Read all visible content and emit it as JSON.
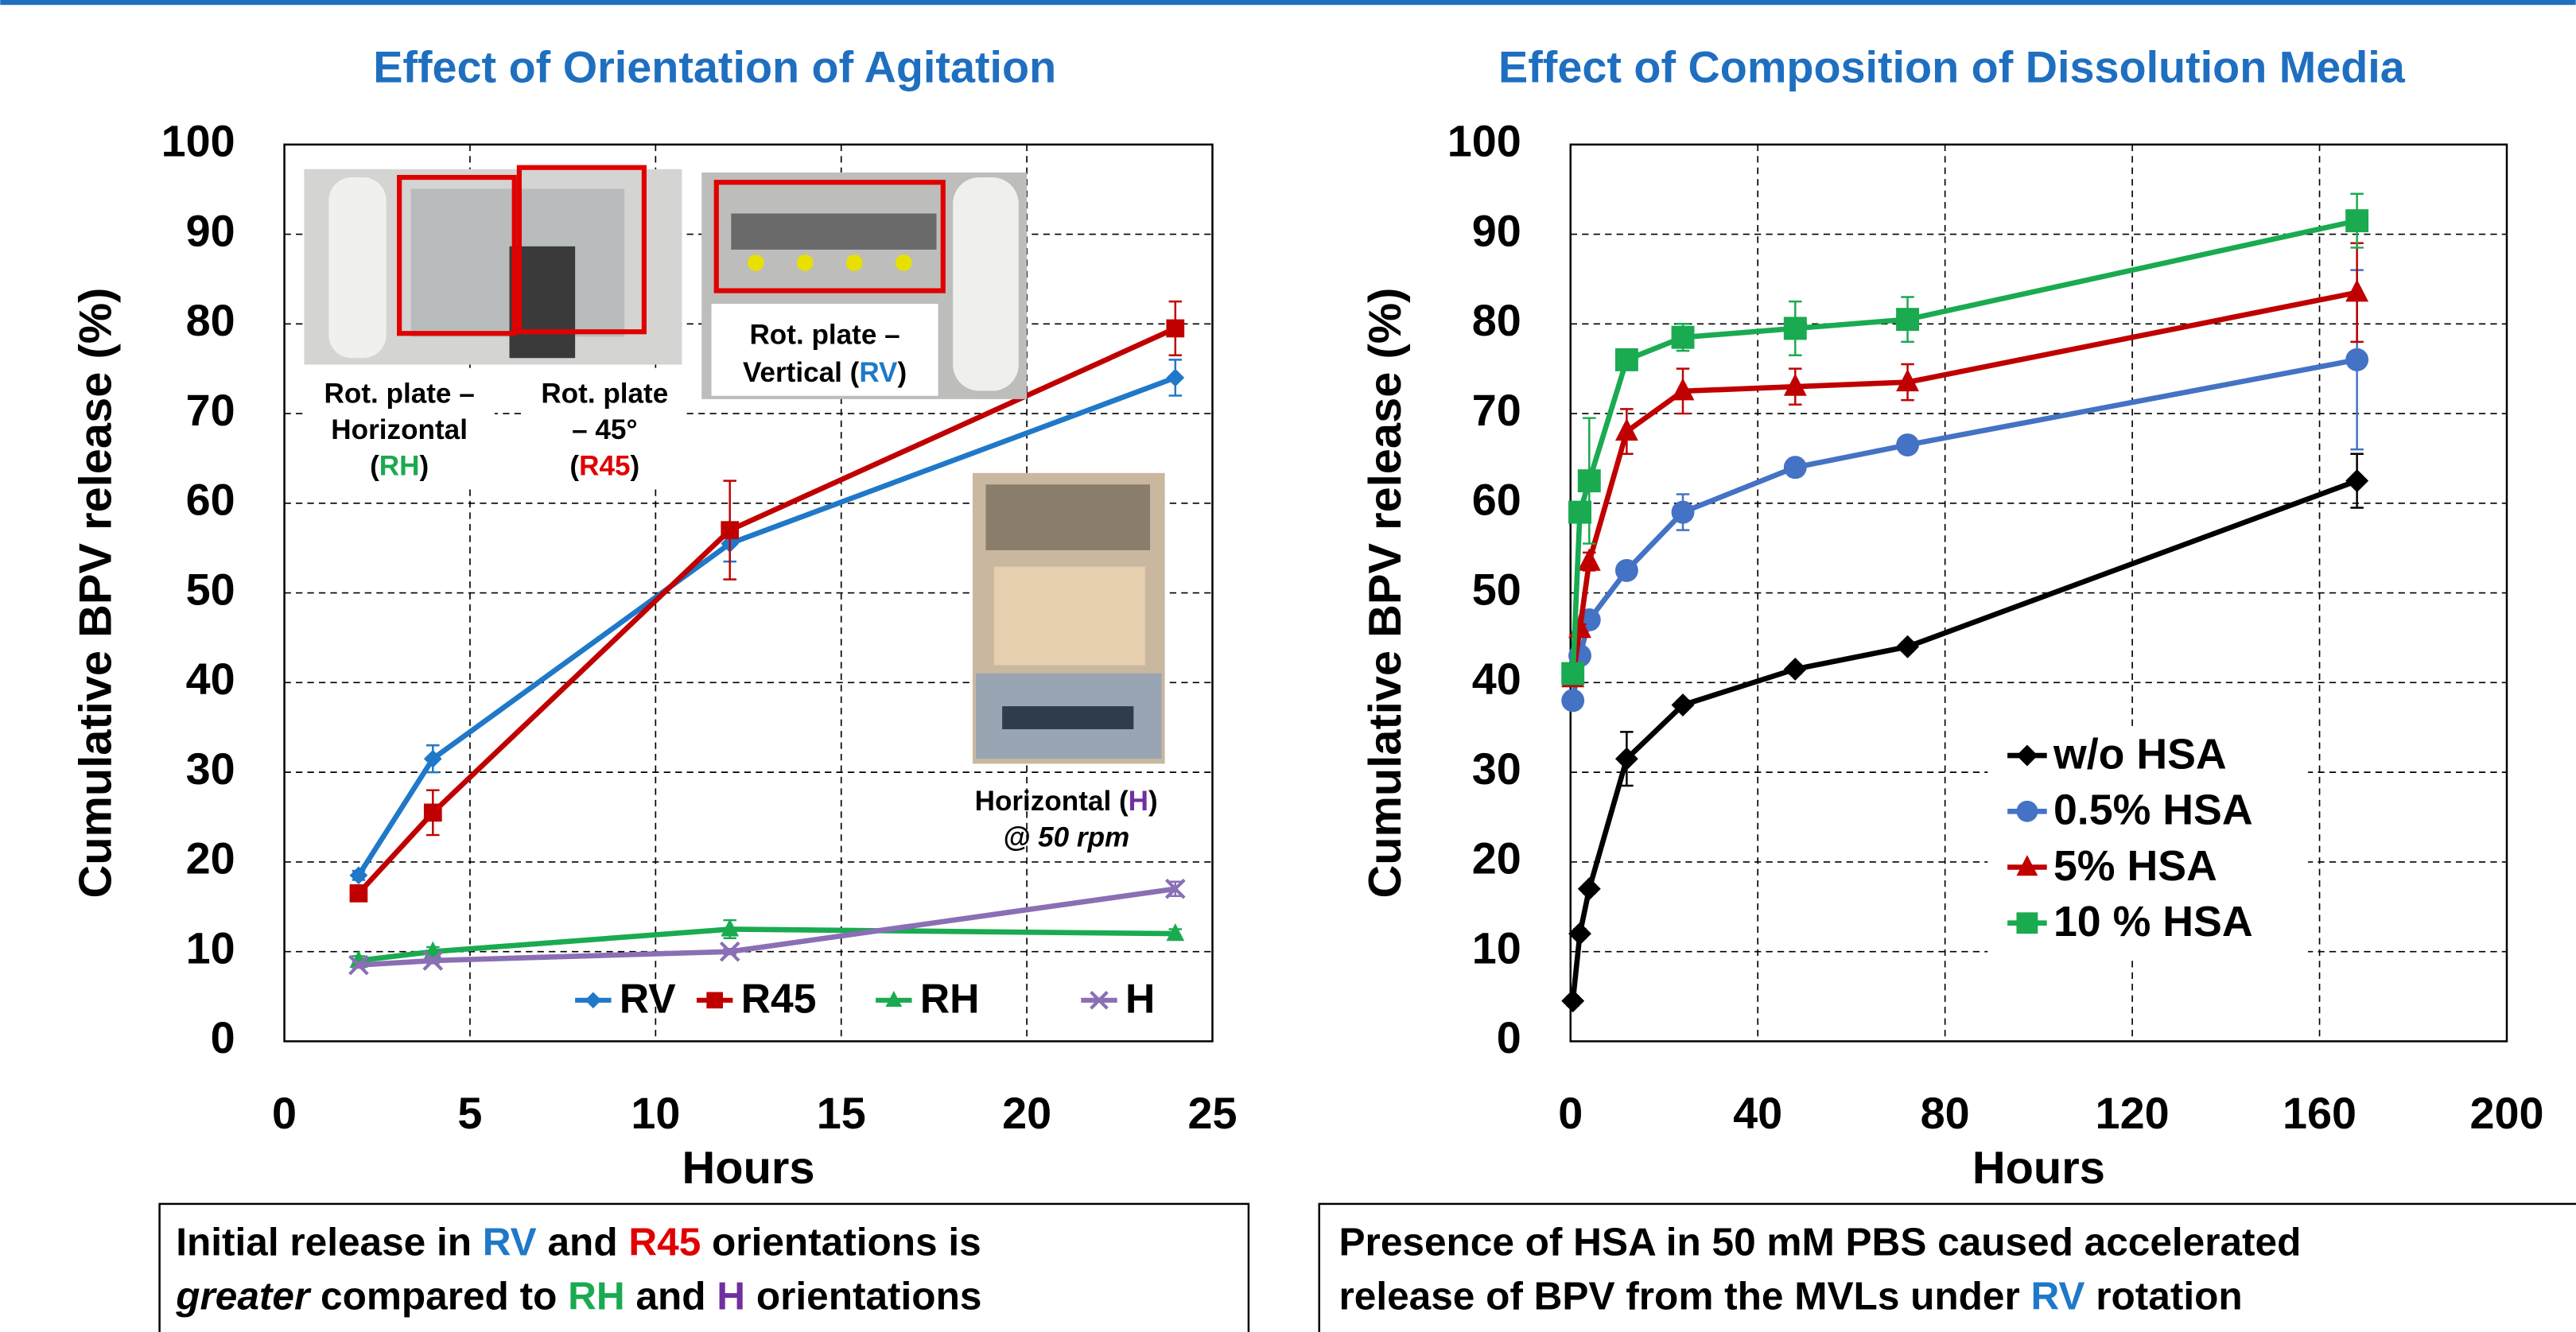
{
  "chart_data": [
    {
      "type": "line",
      "title": "Effect of Orientation of Agitation",
      "title_color": "#1f6fc0",
      "x_label": "Hours",
      "y_label": "Cumulative BPV release (%)",
      "x": [
        2,
        4,
        12,
        24
      ],
      "xlim": [
        0,
        25
      ],
      "xticks": [
        0,
        5,
        10,
        15,
        20,
        25
      ],
      "ylim": [
        0,
        100
      ],
      "yticks": [
        0,
        10,
        20,
        30,
        40,
        50,
        60,
        70,
        80,
        90,
        100
      ],
      "grid": true,
      "legend": "lower right",
      "series": [
        {
          "name": "RV",
          "color": "#1f78c8",
          "marker": "diamond",
          "values": [
            18.5,
            31.5,
            55.5,
            74
          ],
          "errors": [
            0.5,
            1.5,
            2,
            2
          ]
        },
        {
          "name": "R45",
          "color": "#c00000",
          "marker": "square",
          "values": [
            16.5,
            25.5,
            57,
            79.5
          ],
          "errors": [
            0.5,
            2.5,
            5.5,
            3
          ]
        },
        {
          "name": "RH",
          "color": "#1aaa50",
          "marker": "triangle",
          "values": [
            9,
            10,
            12.5,
            12
          ],
          "errors": [
            0.5,
            0.5,
            1,
            0.5
          ]
        },
        {
          "name": "H",
          "color": "#8a6fb5",
          "marker": "x",
          "values": [
            8.5,
            9,
            10,
            17
          ],
          "errors": [
            0.3,
            0.3,
            0.3,
            0.8
          ]
        }
      ],
      "annotations": [
        {
          "lines": [
            [
              {
                "text": "Rot. plate –"
              }
            ],
            [
              {
                "text": "Horizontal"
              }
            ],
            [
              {
                "text": "("
              },
              {
                "text": "RH",
                "color": "#1aaa50"
              },
              {
                "text": ")"
              }
            ]
          ]
        },
        {
          "lines": [
            [
              {
                "text": "Rot. plate"
              }
            ],
            [
              {
                "text": "– 45°"
              }
            ],
            [
              {
                "text": "("
              },
              {
                "text": "R45",
                "color": "#e00000"
              },
              {
                "text": ")"
              }
            ]
          ]
        },
        {
          "lines": [
            [
              {
                "text": "Rot. plate –"
              }
            ],
            [
              {
                "text": "Vertical ("
              },
              {
                "text": "RV",
                "color": "#1f78c8"
              },
              {
                "text": ")"
              }
            ]
          ]
        },
        {
          "lines": [
            [
              {
                "text": "Horizontal ("
              },
              {
                "text": "H",
                "color": "#7030a0"
              },
              {
                "text": ")"
              }
            ],
            [
              {
                "text": "@ 50 rpm",
                "style": "italic"
              }
            ]
          ]
        }
      ]
    },
    {
      "type": "line",
      "title": "Effect of Composition of Dissolution Media",
      "title_color": "#1f6fc0",
      "x_label": "Hours",
      "y_label": "Cumulative BPV release (%)",
      "x": [
        0.5,
        2,
        4,
        12,
        24,
        48,
        72,
        168
      ],
      "xlim": [
        0,
        200
      ],
      "xticks": [
        0,
        40,
        80,
        120,
        160,
        200
      ],
      "ylim": [
        0,
        100
      ],
      "yticks": [
        0,
        10,
        20,
        30,
        40,
        50,
        60,
        70,
        80,
        90,
        100
      ],
      "grid": true,
      "legend": "center right",
      "series": [
        {
          "name": "w/o HSA",
          "color": "#000000",
          "marker": "diamond",
          "values": [
            4.5,
            12,
            17,
            31.5,
            37.5,
            41.5,
            44,
            62.5
          ],
          "errors": [
            0.5,
            0.5,
            0.5,
            3,
            0.5,
            0.5,
            0.5,
            3
          ]
        },
        {
          "name": "0.5% HSA",
          "color": "#4472c4",
          "marker": "circle",
          "values": [
            38,
            43,
            47,
            52.5,
            59,
            64,
            66.5,
            76
          ],
          "errors": [
            0.5,
            0.5,
            1,
            0.5,
            2,
            1,
            0.5,
            10
          ]
        },
        {
          "name": "5% HSA",
          "color": "#c00000",
          "marker": "triangle",
          "values": [
            40.5,
            46,
            53.5,
            68,
            72.5,
            73,
            73.5,
            83.5
          ],
          "errors": [
            0.5,
            0.5,
            1,
            2.5,
            2.5,
            2,
            2,
            5.5
          ]
        },
        {
          "name": "10 % HSA",
          "color": "#1aaa50",
          "marker": "square",
          "values": [
            41,
            59,
            62.5,
            76,
            78.5,
            79.5,
            80.5,
            91.5
          ],
          "errors": [
            1,
            1,
            7,
            1,
            1.5,
            3,
            2.5,
            3
          ]
        }
      ]
    }
  ],
  "captions": [
    {
      "lines": [
        [
          {
            "text": "Initial release in "
          },
          {
            "text": "RV",
            "color": "#1f78c8"
          },
          {
            "text": " and "
          },
          {
            "text": "R45",
            "color": "#e00000"
          },
          {
            "text": " orientations is"
          }
        ],
        [
          {
            "text": "greater",
            "style": "italic"
          },
          {
            "text": " compared to "
          },
          {
            "text": "RH",
            "color": "#1aaa50"
          },
          {
            "text": " and "
          },
          {
            "text": "H",
            "color": "#7030a0"
          },
          {
            "text": " orientations"
          }
        ]
      ]
    },
    {
      "lines": [
        [
          {
            "text": "Presence of HSA in 50 mM PBS caused accelerated"
          }
        ],
        [
          {
            "text": "release of BPV from the MVLs under "
          },
          {
            "text": "RV",
            "color": "#1f78c8"
          },
          {
            "text": " rotation"
          }
        ]
      ]
    }
  ]
}
